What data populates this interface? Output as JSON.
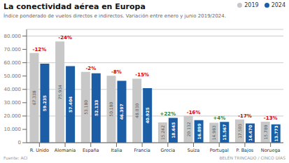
{
  "chart_data": {
    "type": "bar",
    "title": "La conectividad aérea en Europa",
    "subtitle": "Índice ponderado de vuelos directos e indirectos. Variación entre enero y junio 2019/2024.",
    "source": "Fuente: ACI",
    "credit": "BELÉN TRINCADO / CINCO DÍAS",
    "categories": [
      "R. Unido",
      "Alemania",
      "España",
      "Italia",
      "Francia",
      "Grecia",
      "Suiza",
      "Portugal",
      "P. Bajos",
      "Noruega"
    ],
    "series": [
      {
        "name": "2019",
        "color": "#c8c8c8",
        "values": [
          67338,
          75934,
          53180,
          50180,
          48030,
          15242,
          20132,
          14983,
          17503,
          15789
        ],
        "value_labels": [
          "67.338",
          "75.934",
          "53.180",
          "50.180",
          "48.030",
          "15.242",
          "20.132",
          "14.983",
          "17.503",
          "15.789"
        ]
      },
      {
        "name": "2024",
        "color": "#1b5ea6",
        "values": [
          59235,
          57404,
          52133,
          46397,
          40925,
          18645,
          16899,
          15567,
          14470,
          13773
        ],
        "value_labels": [
          "59.235",
          "57.404",
          "52.133",
          "46.397",
          "40.925",
          "18.645",
          "16.899",
          "15.567",
          "14.470",
          "13.773"
        ]
      }
    ],
    "annotations": [
      {
        "category": "R. Unido",
        "text": "-12%",
        "color": "#cc0000"
      },
      {
        "category": "Alemania",
        "text": "-24%",
        "color": "#cc0000"
      },
      {
        "category": "España",
        "text": "-2%",
        "color": "#cc0000"
      },
      {
        "category": "Italia",
        "text": "-8%",
        "color": "#cc0000"
      },
      {
        "category": "Francia",
        "text": "-15%",
        "color": "#cc0000"
      },
      {
        "category": "Grecia",
        "text": "+22%",
        "color": "#2e7d32"
      },
      {
        "category": "Suiza",
        "text": "-16%",
        "color": "#cc0000"
      },
      {
        "category": "Portugal",
        "text": "+4%",
        "color": "#2e7d32"
      },
      {
        "category": "P. Bajos",
        "text": "-17%",
        "color": "#cc0000"
      },
      {
        "category": "Noruega",
        "text": "-13%",
        "color": "#cc0000"
      }
    ],
    "ylim": [
      0,
      85000
    ],
    "yticks": [
      0,
      {
        "value": 10000,
        "label": "10.000"
      },
      {
        "value": 20000,
        "label": "20.000"
      },
      {
        "value": 30000,
        "label": "30.000"
      },
      {
        "value": 40000,
        "label": "40.000"
      },
      {
        "value": 50000,
        "label": "50.000"
      },
      {
        "value": 60000,
        "label": "60.000"
      },
      {
        "value": 70000,
        "label": "70.000"
      },
      {
        "value": 80000,
        "label": "80.000"
      }
    ],
    "grid": true,
    "legend": "upper right",
    "data_labels": true
  }
}
